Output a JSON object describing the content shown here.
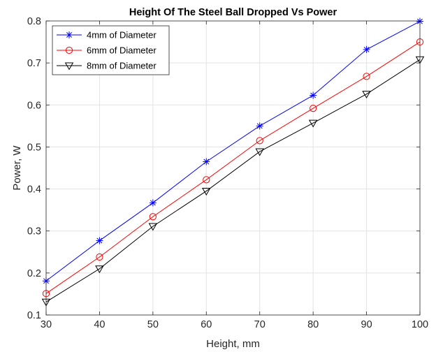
{
  "chart_data": {
    "type": "line",
    "title": "Height Of The Steel Ball Dropped Vs Power",
    "xlabel": "Height, mm",
    "ylabel": "Power, W",
    "xlim": [
      30,
      100
    ],
    "ylim": [
      0.1,
      0.8
    ],
    "xticks": [
      "30",
      "40",
      "50",
      "60",
      "70",
      "80",
      "90",
      "100"
    ],
    "yticks": [
      "0.1",
      "0.2",
      "0.3",
      "0.4",
      "0.5",
      "0.6",
      "0.7",
      "0.8"
    ],
    "grid": true,
    "legend_position": "top-left",
    "x": [
      30,
      40,
      50,
      60,
      70,
      80,
      90,
      100
    ],
    "series": [
      {
        "name": "4mm of Diameter",
        "color": "#0000ff",
        "marker": "asterisk",
        "values": [
          0.181,
          0.277,
          0.367,
          0.465,
          0.55,
          0.623,
          0.732,
          0.799
        ]
      },
      {
        "name": "6mm of Diameter",
        "color": "#ff0000",
        "marker": "circle",
        "values": [
          0.151,
          0.238,
          0.334,
          0.422,
          0.515,
          0.592,
          0.668,
          0.75
        ]
      },
      {
        "name": "8mm of Diameter",
        "color": "#000000",
        "marker": "triangle-down",
        "values": [
          0.131,
          0.21,
          0.311,
          0.395,
          0.489,
          0.557,
          0.626,
          0.708
        ]
      }
    ]
  }
}
